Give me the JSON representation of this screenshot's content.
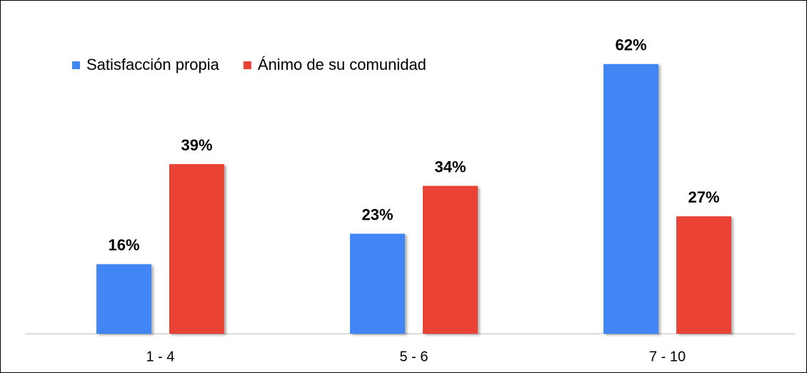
{
  "chart_data": {
    "type": "bar",
    "categories": [
      "1 - 4",
      "5 - 6",
      "7 - 10"
    ],
    "series": [
      {
        "name": "Satisfacción propia",
        "color": "#4285f4",
        "values": [
          16,
          23,
          62
        ],
        "value_labels": [
          "16%",
          "23%",
          "62%"
        ]
      },
      {
        "name": "Ánimo de su comunidad",
        "color": "#ea4335",
        "values": [
          39,
          34,
          27
        ],
        "value_labels": [
          "39%",
          "34%",
          "27%"
        ]
      }
    ],
    "legend": "top-left"
  }
}
